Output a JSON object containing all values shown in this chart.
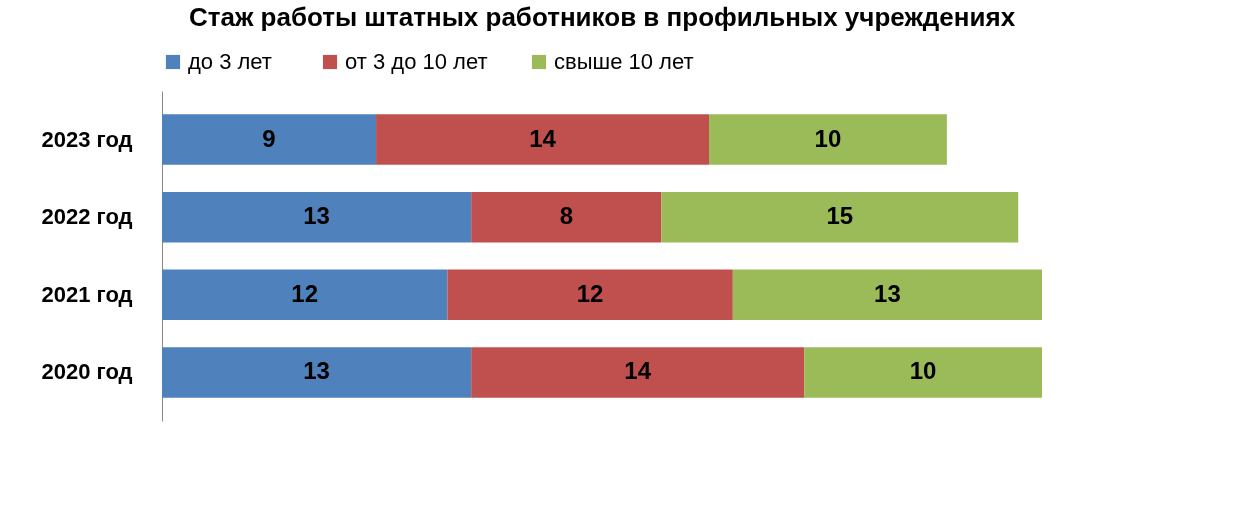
{
  "chart_data": {
    "type": "bar",
    "orientation": "horizontal",
    "stacked": true,
    "data_labels": true,
    "legend": "top",
    "title": "Стаж работы штатных работников в профильных учреждениях",
    "categories": [
      "2023 год",
      "2022 год",
      "2021 год",
      "2020 год"
    ],
    "series": [
      {
        "name": "до  3 лет",
        "color": "#4f81bd",
        "values": [
          9,
          13,
          12,
          13
        ]
      },
      {
        "name": "от 3 до 10 лет",
        "color": "#c0504d",
        "values": [
          14,
          8,
          12,
          14
        ]
      },
      {
        "name": "свыше 10 лет",
        "color": "#9bbb59",
        "values": [
          10,
          15,
          13,
          10
        ]
      }
    ]
  }
}
